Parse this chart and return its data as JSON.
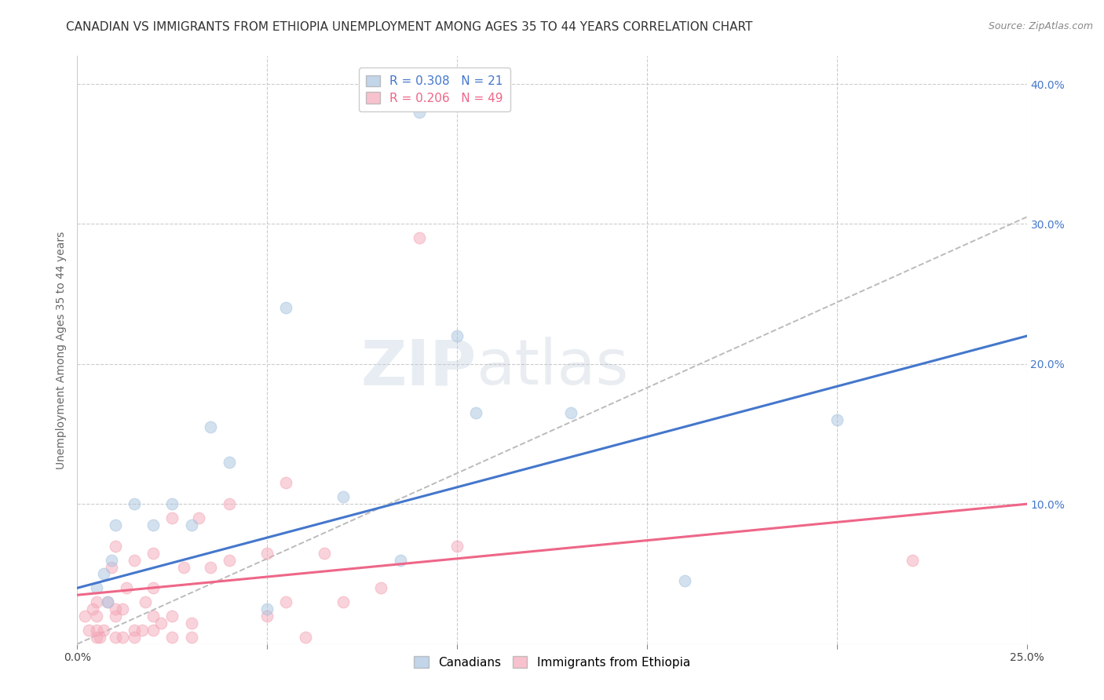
{
  "title": "CANADIAN VS IMMIGRANTS FROM ETHIOPIA UNEMPLOYMENT AMONG AGES 35 TO 44 YEARS CORRELATION CHART",
  "source": "Source: ZipAtlas.com",
  "ylabel": "Unemployment Among Ages 35 to 44 years",
  "xlim": [
    0.0,
    0.25
  ],
  "ylim": [
    0.0,
    0.42
  ],
  "canadians_R": 0.308,
  "canadians_N": 21,
  "ethiopia_R": 0.206,
  "ethiopia_N": 49,
  "canadians_color": "#A8C4E0",
  "ethiopia_color": "#F4A8B8",
  "canadian_line_color": "#4477CC",
  "ethiopia_line_color": "#EE6688",
  "diagonal_color": "#BBBBBB",
  "background_color": "#FFFFFF",
  "canadians_x": [
    0.005,
    0.007,
    0.008,
    0.009,
    0.01,
    0.015,
    0.02,
    0.025,
    0.03,
    0.035,
    0.04,
    0.05,
    0.055,
    0.07,
    0.085,
    0.09,
    0.1,
    0.105,
    0.13,
    0.16,
    0.2
  ],
  "canadians_y": [
    0.04,
    0.05,
    0.03,
    0.06,
    0.085,
    0.1,
    0.085,
    0.1,
    0.085,
    0.155,
    0.13,
    0.025,
    0.24,
    0.105,
    0.06,
    0.38,
    0.22,
    0.165,
    0.165,
    0.045,
    0.16
  ],
  "ethiopia_x": [
    0.002,
    0.003,
    0.004,
    0.005,
    0.005,
    0.005,
    0.005,
    0.006,
    0.007,
    0.008,
    0.009,
    0.01,
    0.01,
    0.01,
    0.01,
    0.012,
    0.012,
    0.013,
    0.015,
    0.015,
    0.015,
    0.017,
    0.018,
    0.02,
    0.02,
    0.02,
    0.02,
    0.022,
    0.025,
    0.025,
    0.025,
    0.028,
    0.03,
    0.03,
    0.032,
    0.035,
    0.04,
    0.04,
    0.05,
    0.05,
    0.055,
    0.055,
    0.06,
    0.065,
    0.07,
    0.08,
    0.09,
    0.1,
    0.22
  ],
  "ethiopia_y": [
    0.02,
    0.01,
    0.025,
    0.005,
    0.01,
    0.02,
    0.03,
    0.005,
    0.01,
    0.03,
    0.055,
    0.005,
    0.02,
    0.025,
    0.07,
    0.005,
    0.025,
    0.04,
    0.005,
    0.01,
    0.06,
    0.01,
    0.03,
    0.01,
    0.02,
    0.04,
    0.065,
    0.015,
    0.005,
    0.02,
    0.09,
    0.055,
    0.005,
    0.015,
    0.09,
    0.055,
    0.06,
    0.1,
    0.02,
    0.065,
    0.03,
    0.115,
    0.005,
    0.065,
    0.03,
    0.04,
    0.29,
    0.07,
    0.06
  ],
  "title_fontsize": 11,
  "axis_label_fontsize": 10,
  "tick_fontsize": 10,
  "legend_fontsize": 11,
  "source_fontsize": 9,
  "marker_size": 110,
  "marker_alpha": 0.5,
  "line_width": 2.2
}
